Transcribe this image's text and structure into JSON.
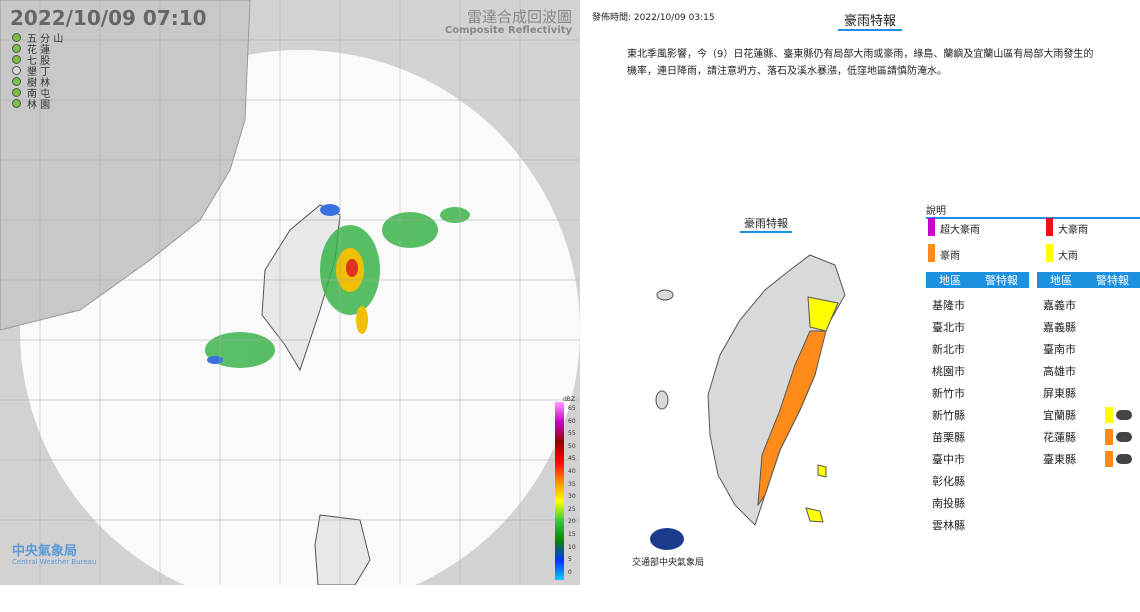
{
  "radar": {
    "timestamp": "2022/10/09  07:10",
    "title": "雷達合成回波圖",
    "subtitle": "Composite Reflectivity",
    "stations": [
      {
        "name": "五 分 山",
        "color": "#7ac143"
      },
      {
        "name": "花 蓮",
        "color": "#7ac143"
      },
      {
        "name": "七 股",
        "color": "#7ac143"
      },
      {
        "name": "墾 丁",
        "color": "#d8d8d8"
      },
      {
        "name": "樹 林",
        "color": "#7ac143"
      },
      {
        "name": "南 屯",
        "color": "#7ac143"
      },
      {
        "name": "林 園",
        "color": "#7ac143"
      }
    ],
    "colorbar": {
      "unit": "dBZ",
      "labels": [
        "65",
        "60",
        "55",
        "50",
        "45",
        "40",
        "35",
        "30",
        "25",
        "20",
        "15",
        "10",
        "5",
        "0"
      ]
    },
    "logo": {
      "name": "中央氣象局",
      "english": "Central Weather Bureau"
    }
  },
  "warning": {
    "issued": "發佈時間: 2022/10/09 03:15",
    "title": "豪雨特報",
    "text": "東北季風影響，今（9）日花蓮縣、臺東縣仍有局部大雨或豪雨，綠島、蘭嶼及宜蘭山區有局部大雨發生的機率，連日降雨，請注意坍方、落石及溪水暴漲，低窪地區請慎防淹水。",
    "map_title": "豪雨特報",
    "agency": "交通部中央氣象局",
    "legend_title": "說明",
    "legend": [
      {
        "label": "超大豪雨",
        "color": "#cc00cc"
      },
      {
        "label": "大豪雨",
        "color": "#ee1111"
      },
      {
        "label": "豪雨",
        "color": "#ff8c1a"
      },
      {
        "label": "大雨",
        "color": "#ffff00"
      }
    ],
    "headers": [
      "地區",
      "警特報"
    ],
    "columns": [
      [
        {
          "name": "基隆市"
        },
        {
          "name": "臺北市"
        },
        {
          "name": "新北市"
        },
        {
          "name": "桃園市"
        },
        {
          "name": "新竹市"
        },
        {
          "name": "新竹縣"
        },
        {
          "name": "苗栗縣"
        },
        {
          "name": "臺中市"
        },
        {
          "name": "彰化縣"
        },
        {
          "name": "南投縣"
        },
        {
          "name": "雲林縣"
        }
      ],
      [
        {
          "name": "嘉義市"
        },
        {
          "name": "嘉義縣"
        },
        {
          "name": "臺南市"
        },
        {
          "name": "高雄市"
        },
        {
          "name": "屏東縣"
        },
        {
          "name": "宜蘭縣",
          "color": "#ffff00"
        },
        {
          "name": "花蓮縣",
          "color": "#ff8c1a"
        },
        {
          "name": "臺東縣",
          "color": "#ff8c1a"
        }
      ]
    ]
  }
}
